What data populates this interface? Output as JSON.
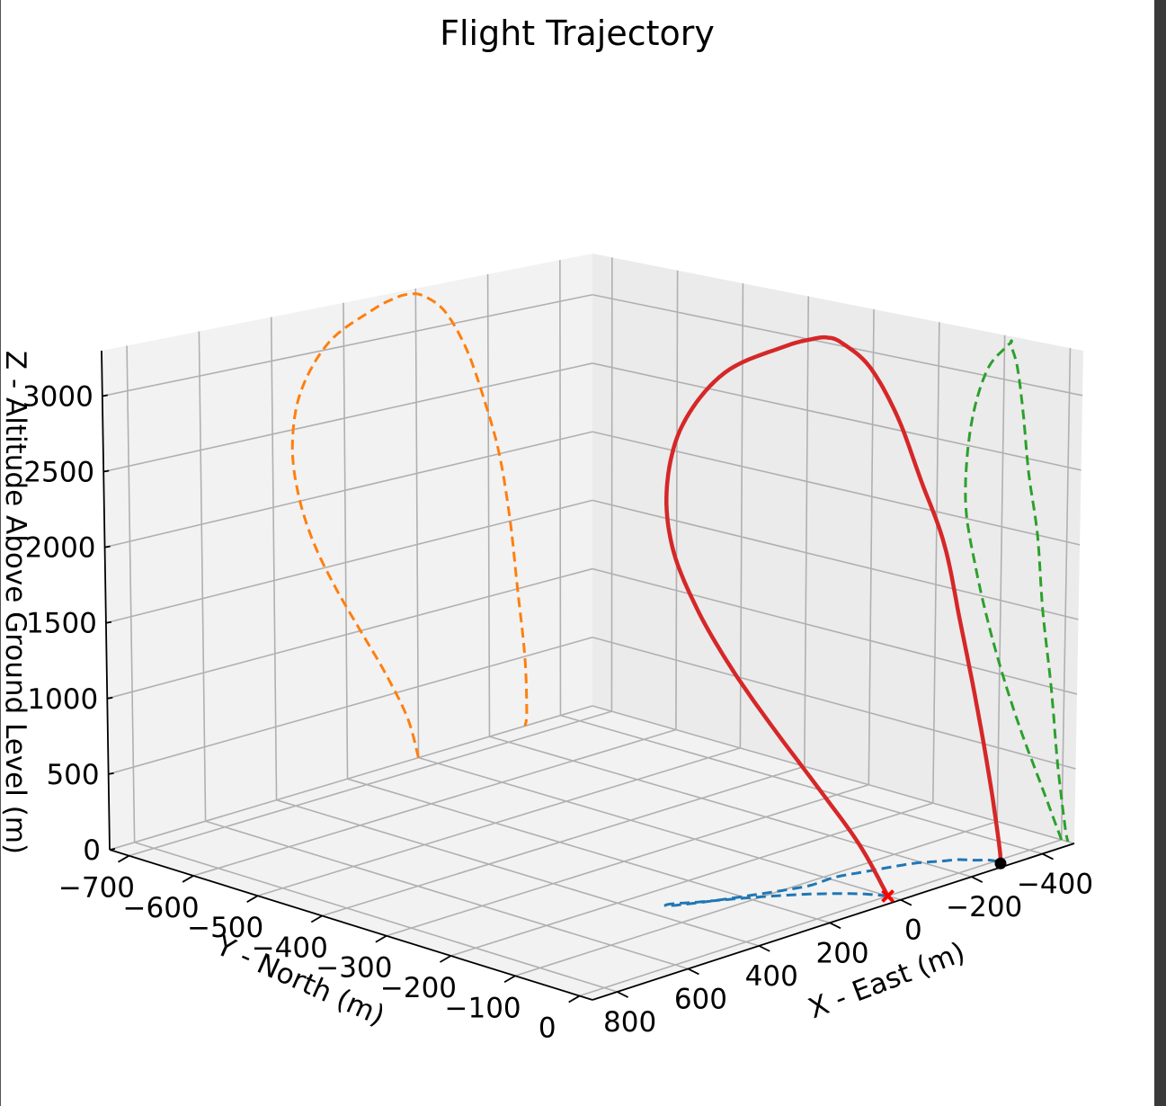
{
  "chart_data": {
    "type": "line3d",
    "title": "Flight Trajectory",
    "xlabel": "X - East (m)",
    "ylabel": "Y - North (m)",
    "zlabel": "Z - Altitude Above Ground Level (m)",
    "x_ticks": [
      "800",
      "600",
      "400",
      "200",
      "0",
      "−200",
      "−400"
    ],
    "y_ticks": [
      "−700",
      "−600",
      "−500",
      "−400",
      "−300",
      "−200",
      "−100",
      "0"
    ],
    "z_ticks": [
      "0",
      "500",
      "1000",
      "1500",
      "2000",
      "2500",
      "3000"
    ],
    "xlim": [
      -490,
      870
    ],
    "ylim": [
      -730,
      20
    ],
    "zlim": [
      0,
      3300
    ],
    "grid": true,
    "series": [
      {
        "color": "#d62728",
        "style": "solid",
        "points": [
          [
            0,
            0,
            0
          ],
          [
            30,
            -30,
            300
          ],
          [
            90,
            -65,
            650
          ],
          [
            160,
            -95,
            1000
          ],
          [
            230,
            -120,
            1350
          ],
          [
            290,
            -140,
            1700
          ],
          [
            330,
            -155,
            2050
          ],
          [
            345,
            -155,
            2400
          ],
          [
            320,
            -145,
            2750
          ],
          [
            240,
            -125,
            3050
          ],
          [
            120,
            -100,
            3210
          ],
          [
            60,
            -90,
            3260
          ],
          [
            20,
            -90,
            3270
          ],
          [
            -20,
            -90,
            3240
          ],
          [
            -80,
            -80,
            3100
          ],
          [
            -140,
            -70,
            2800
          ],
          [
            -190,
            -60,
            2400
          ],
          [
            -230,
            -45,
            2000
          ],
          [
            -260,
            -35,
            1500
          ],
          [
            -280,
            -20,
            1000
          ],
          [
            -300,
            -8,
            500
          ],
          [
            -305,
            5,
            100
          ],
          [
            -300,
            10,
            0
          ]
        ]
      }
    ],
    "markers": [
      {
        "name": "launch",
        "symbol": "dot",
        "color": "#000000",
        "point": [
          -300,
          10,
          0
        ]
      },
      {
        "name": "landing",
        "symbol": "x",
        "color": "#ff0000",
        "point": [
          0,
          0,
          0
        ]
      }
    ],
    "projections": [
      {
        "plane": "ground",
        "color": "#1f77b4",
        "style": "dashed"
      },
      {
        "plane": "y-min wall",
        "color": "#ff7f0e",
        "style": "dashed"
      },
      {
        "plane": "x-min wall",
        "color": "#2ca02c",
        "style": "dashed"
      }
    ]
  }
}
